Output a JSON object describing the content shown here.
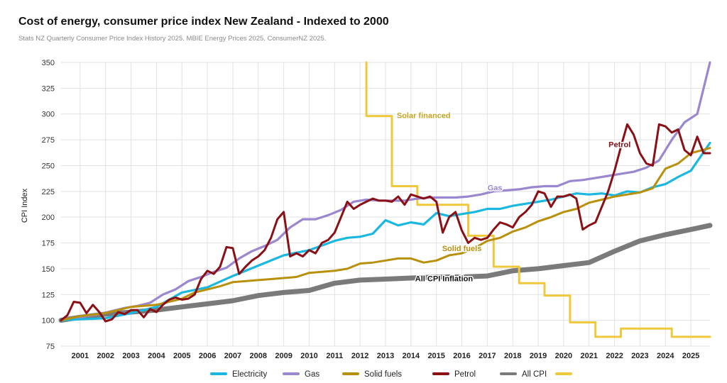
{
  "chart_data": {
    "type": "line",
    "title": "Cost of energy, consumer price index New Zealand - Indexed to 2000",
    "subtitle": "Stats NZ Quarterly Consumer Price Index History 2025. MBIE Energy Prices 2025. ConsumerNZ 2025.",
    "xlabel": "",
    "ylabel": "CPI Index",
    "xlim": [
      2000.25,
      2025.75
    ],
    "ylim": [
      75,
      350
    ],
    "grid": true,
    "legend_position": "bottom",
    "y_ticks": [
      "350",
      "325",
      "300",
      "275",
      "250",
      "225",
      "200",
      "175",
      "150",
      "125",
      "100",
      "75"
    ],
    "x_ticks": [
      "2001",
      "2002",
      "2003",
      "2004",
      "2005",
      "2006",
      "2007",
      "2008",
      "2009",
      "2010",
      "2011",
      "2012",
      "2013",
      "2014",
      "2015",
      "2016",
      "2017",
      "2018",
      "2019",
      "2020",
      "2021",
      "2022",
      "2023",
      "2024",
      "2025"
    ],
    "series": [
      {
        "name": "Electricity",
        "color": "#1ab8e0",
        "label": "",
        "x": [
          2000.25,
          2001,
          2002,
          2003,
          2004,
          2005,
          2006,
          2007,
          2008,
          2009,
          2010,
          2011,
          2011.5,
          2012,
          2012.5,
          2013,
          2013.5,
          2014,
          2014.5,
          2015,
          2015.5,
          2016,
          2016.5,
          2017,
          2017.5,
          2018,
          2018.5,
          2019,
          2019.5,
          2020,
          2020.5,
          2021,
          2021.5,
          2022,
          2022.5,
          2023,
          2023.5,
          2024,
          2024.5,
          2025,
          2025.75
        ],
        "y": [
          100,
          101,
          102,
          107,
          113,
          127,
          132,
          143,
          153,
          163,
          168,
          177,
          180,
          181,
          184,
          197,
          192,
          195,
          193,
          204,
          201,
          203,
          205,
          208,
          208,
          211,
          213,
          215,
          217,
          220,
          223,
          222,
          223,
          221,
          225,
          224,
          229,
          232,
          239,
          245,
          272
        ]
      },
      {
        "name": "Gas",
        "color": "#9b87cf",
        "label": "Gas",
        "x": [
          2000.25,
          2001,
          2001.75,
          2002.25,
          2002.75,
          2003.25,
          2003.75,
          2004.25,
          2004.75,
          2005.25,
          2005.75,
          2006.25,
          2006.75,
          2007.25,
          2007.75,
          2008.25,
          2008.75,
          2009.25,
          2009.75,
          2010.25,
          2010.75,
          2011.25,
          2011.75,
          2012.25,
          2012.75,
          2013.25,
          2013.75,
          2014.25,
          2014.75,
          2015.25,
          2015.75,
          2016.25,
          2016.75,
          2017.25,
          2017.75,
          2018.25,
          2018.75,
          2019.25,
          2019.75,
          2020.25,
          2020.75,
          2021.25,
          2021.75,
          2022.25,
          2022.75,
          2023.25,
          2023.75,
          2024.25,
          2024.75,
          2025.25,
          2025.75
        ],
        "y": [
          100,
          103,
          106,
          109,
          112,
          114,
          117,
          125,
          130,
          138,
          142,
          147,
          151,
          160,
          167,
          172,
          178,
          190,
          198,
          198,
          202,
          207,
          215,
          217,
          216,
          216,
          216,
          218,
          219,
          219,
          219,
          220,
          222,
          225,
          226,
          227,
          229,
          230,
          230,
          235,
          236,
          238,
          240,
          242,
          244,
          248,
          255,
          275,
          292,
          300,
          350
        ]
      },
      {
        "name": "Solid fuels",
        "color": "#b8900c",
        "label": "Solid fuels",
        "x": [
          2000.25,
          2001,
          2002,
          2002.5,
          2003,
          2004,
          2005,
          2005.5,
          2006,
          2006.5,
          2007,
          2007.5,
          2008,
          2008.5,
          2009,
          2009.5,
          2010,
          2010.5,
          2011,
          2011.5,
          2012,
          2012.5,
          2013,
          2013.5,
          2014,
          2014.5,
          2015,
          2015.5,
          2016,
          2016.5,
          2017,
          2017.5,
          2018,
          2018.5,
          2019,
          2019.5,
          2020,
          2020.5,
          2021,
          2021.5,
          2022,
          2022.5,
          2023,
          2023.5,
          2024,
          2024.5,
          2025,
          2025.75
        ],
        "y": [
          100,
          104,
          107,
          110,
          113,
          115,
          121,
          127,
          130,
          133,
          137,
          138,
          139,
          140,
          141,
          142,
          146,
          147,
          148,
          150,
          155,
          156,
          158,
          160,
          160,
          156,
          158,
          163,
          165,
          170,
          177,
          180,
          186,
          190,
          196,
          200,
          205,
          208,
          214,
          217,
          220,
          222,
          224,
          228,
          247,
          252,
          262,
          267
        ]
      },
      {
        "name": "Petrol",
        "color": "#8b1015",
        "label": "Petrol",
        "x": [
          2000.25,
          2000.5,
          2000.75,
          2001,
          2001.25,
          2001.5,
          2001.75,
          2002,
          2002.25,
          2002.5,
          2002.75,
          2003,
          2003.25,
          2003.5,
          2003.75,
          2004,
          2004.25,
          2004.5,
          2004.75,
          2005,
          2005.25,
          2005.5,
          2005.75,
          2006,
          2006.25,
          2006.5,
          2006.75,
          2007,
          2007.25,
          2007.5,
          2007.75,
          2008,
          2008.25,
          2008.5,
          2008.75,
          2009,
          2009.25,
          2009.5,
          2009.75,
          2010,
          2010.25,
          2010.5,
          2010.75,
          2011,
          2011.25,
          2011.5,
          2011.75,
          2012,
          2012.25,
          2012.5,
          2012.75,
          2013,
          2013.25,
          2013.5,
          2013.75,
          2014,
          2014.25,
          2014.5,
          2014.75,
          2015,
          2015.25,
          2015.5,
          2015.75,
          2016,
          2016.25,
          2016.5,
          2016.75,
          2017,
          2017.25,
          2017.5,
          2017.75,
          2018,
          2018.25,
          2018.5,
          2018.75,
          2019,
          2019.25,
          2019.5,
          2019.75,
          2020,
          2020.25,
          2020.5,
          2020.75,
          2021,
          2021.25,
          2021.5,
          2021.75,
          2022,
          2022.25,
          2022.5,
          2022.75,
          2023,
          2023.25,
          2023.5,
          2023.75,
          2024,
          2024.25,
          2024.5,
          2024.75,
          2025,
          2025.25,
          2025.5,
          2025.75
        ],
        "y": [
          100,
          105,
          118,
          117,
          107,
          115,
          108,
          99,
          101,
          108,
          106,
          110,
          110,
          103,
          111,
          108,
          115,
          120,
          122,
          120,
          121,
          125,
          140,
          148,
          145,
          152,
          171,
          170,
          145,
          152,
          158,
          162,
          168,
          180,
          198,
          205,
          162,
          165,
          162,
          168,
          165,
          175,
          178,
          185,
          200,
          215,
          208,
          212,
          215,
          218,
          216,
          216,
          215,
          220,
          212,
          222,
          220,
          218,
          220,
          215,
          185,
          200,
          205,
          187,
          175,
          180,
          178,
          180,
          188,
          195,
          193,
          190,
          200,
          205,
          212,
          225,
          223,
          210,
          220,
          220,
          222,
          218,
          188,
          192,
          195,
          210,
          225,
          245,
          268,
          290,
          280,
          262,
          252,
          250,
          290,
          288,
          282,
          285,
          265,
          260,
          278,
          262,
          262
        ]
      },
      {
        "name": "All CPI",
        "color": "#7a7a7a",
        "label": "All CPI Inflation",
        "x": [
          2000.25,
          2001,
          2002,
          2003,
          2004,
          2005,
          2006,
          2007,
          2008,
          2009,
          2010,
          2011,
          2012,
          2013,
          2014,
          2015,
          2016,
          2017,
          2018,
          2019,
          2020,
          2021,
          2022,
          2023,
          2024,
          2025,
          2025.75
        ],
        "y": [
          100,
          103,
          106,
          108,
          110,
          113,
          116,
          119,
          124,
          127,
          129,
          136,
          139,
          140,
          141,
          142,
          142,
          143,
          148,
          150,
          153,
          156,
          167,
          177,
          183,
          188,
          192
        ]
      },
      {
        "name": "Solar financed",
        "color": "#f0c83c",
        "label": "Solar financed",
        "x": [
          2012.25,
          2012.25,
          2013.25,
          2013.25,
          2014.25,
          2014.25,
          2016.25,
          2016.25,
          2017.25,
          2017.25,
          2018.25,
          2018.25,
          2019.25,
          2019.25,
          2020.25,
          2020.25,
          2021.25,
          2021.25,
          2022.25,
          2022.25,
          2024.25,
          2024.25,
          2025.75
        ],
        "y": [
          350,
          298,
          298,
          230,
          230,
          212,
          212,
          182,
          182,
          152,
          152,
          136,
          136,
          124,
          124,
          98,
          98,
          84,
          84,
          92,
          92,
          84,
          84
        ]
      }
    ]
  },
  "legend": [
    {
      "label": "Electricity",
      "color": "#1ab8e0"
    },
    {
      "label": "Gas",
      "color": "#9b87cf"
    },
    {
      "label": "Solid fuels",
      "color": "#b8900c"
    },
    {
      "label": "Petrol",
      "color": "#8b1015"
    },
    {
      "label": "All CPI",
      "color": "#7a7a7a"
    },
    {
      "label": "",
      "color": "#f0c83c"
    }
  ]
}
